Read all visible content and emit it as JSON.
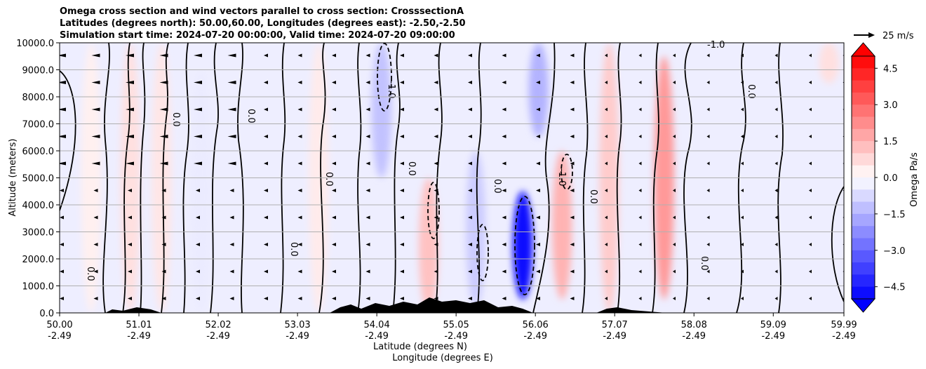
{
  "chart_data": {
    "type": "heatmap",
    "title_lines": [
      "Omega cross section and wind vectors parallel to cross section: CrosssectionA",
      "Latitudes (degrees north): 50.00,60.00, Longitudes (degrees east): -2.50,-2.50",
      "Simulation start time: 2024-07-20 00:00:00, Valid time: 2024-07-20 09:00:00"
    ],
    "ylabel": "Altitude (meters)",
    "xlabel": "Latitude (degrees N)",
    "xlabel2": "Longitude (degrees E)",
    "ylim": [
      0,
      10000
    ],
    "xlim": [
      50.0,
      59.99
    ],
    "y_ticks": [
      "0.0",
      "1000.0",
      "2000.0",
      "3000.0",
      "4000.0",
      "5000.0",
      "6000.0",
      "7000.0",
      "8000.0",
      "9000.0",
      "10000.0"
    ],
    "x_ticks_lat": [
      "50.00",
      "51.01",
      "52.02",
      "53.03",
      "54.04",
      "55.05",
      "56.06",
      "57.07",
      "58.08",
      "59.09",
      "59.99"
    ],
    "x_ticks_lon": [
      "-2.49",
      "-2.49",
      "-2.49",
      "-2.49",
      "-2.49",
      "-2.49",
      "-2.49",
      "-2.49",
      "-2.49",
      "-2.49",
      "-2.49"
    ],
    "colorbar": {
      "label": "Omega Pa/s",
      "range": [
        -5.0,
        5.0
      ],
      "ticks": [
        "4.5",
        "3.0",
        "1.5",
        "0.0",
        "−1.5",
        "−3.0",
        "−4.5"
      ],
      "tick_values": [
        4.5,
        3.0,
        1.5,
        0.0,
        -1.5,
        -3.0,
        -4.5
      ]
    },
    "quiver_key": "25 m/s",
    "contour_label": "0.0",
    "contour_label_neg": "-1.0",
    "omega_features": [
      {
        "lat": 50.4,
        "alt_min": 0,
        "alt_max": 10000,
        "omega": 0.3
      },
      {
        "lat": 50.9,
        "alt_min": 0,
        "alt_max": 10000,
        "omega": 0.6
      },
      {
        "lat": 51.3,
        "alt_min": 0,
        "alt_max": 10000,
        "omega": 0.5
      },
      {
        "lat": 51.8,
        "alt_min": 0,
        "alt_max": 9000,
        "omega": -0.4
      },
      {
        "lat": 53.3,
        "alt_min": 0,
        "alt_max": 10000,
        "omega": 0.4
      },
      {
        "lat": 54.1,
        "alt_min": 5000,
        "alt_max": 10000,
        "omega": -1.2
      },
      {
        "lat": 54.7,
        "alt_min": 0,
        "alt_max": 5000,
        "omega": 1.2
      },
      {
        "lat": 55.3,
        "alt_min": 200,
        "alt_max": 6000,
        "omega": -1.0
      },
      {
        "lat": 55.9,
        "alt_min": 500,
        "alt_max": 4500,
        "omega": -4.8
      },
      {
        "lat": 56.1,
        "alt_min": 6500,
        "alt_max": 10000,
        "omega": -1.5
      },
      {
        "lat": 56.4,
        "alt_min": 500,
        "alt_max": 6000,
        "omega": 1.5
      },
      {
        "lat": 57.0,
        "alt_min": 0,
        "alt_max": 10000,
        "omega": 1.0
      },
      {
        "lat": 57.7,
        "alt_min": 500,
        "alt_max": 9500,
        "omega": 2.0
      },
      {
        "lat": 59.8,
        "alt_min": 8500,
        "alt_max": 10000,
        "omega": 0.6
      }
    ]
  }
}
